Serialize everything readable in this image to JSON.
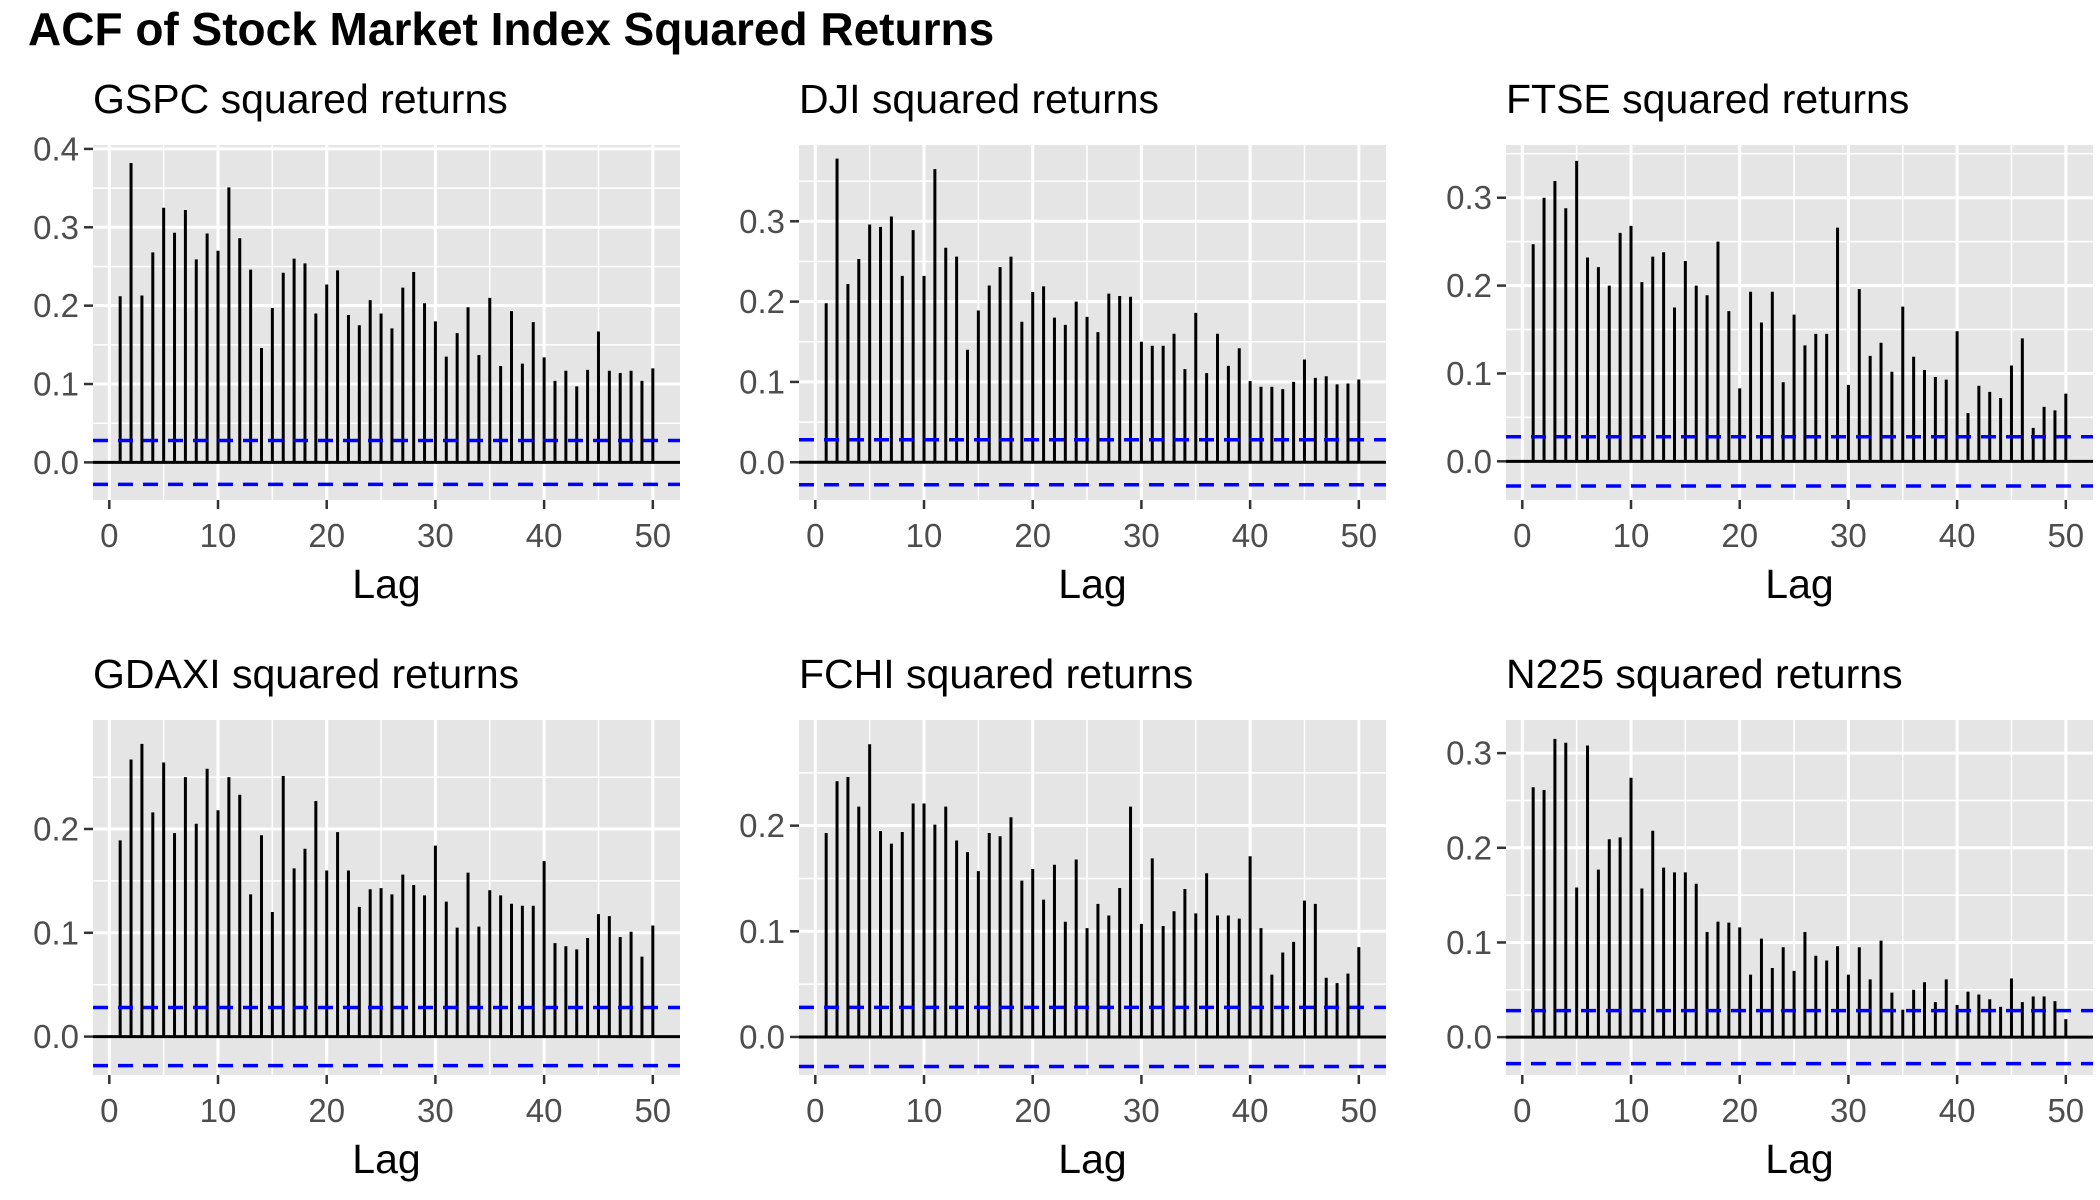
{
  "title": "ACF of Stock Market Index Squared Returns",
  "colors": {
    "panel_background": "#e5e5e5",
    "grid": "#ffffff",
    "bars": "#000000",
    "confidence_band": "#0000ff"
  },
  "chart_data": [
    {
      "type": "bar",
      "title": "GSPC squared returns",
      "xlabel": "Lag",
      "ylabel": "",
      "xlim": [
        -1.5,
        52.5
      ],
      "ylim": [
        -0.048,
        0.405
      ],
      "xticks": [
        0,
        10,
        20,
        30,
        40,
        50
      ],
      "yticks": [
        0.0,
        0.1,
        0.2,
        0.3,
        0.4
      ],
      "ytick_labels": [
        "0.0",
        "0.1",
        "0.2",
        "0.3",
        "0.4"
      ],
      "confidence_bound": 0.028,
      "x": [
        1,
        2,
        3,
        4,
        5,
        6,
        7,
        8,
        9,
        10,
        11,
        12,
        13,
        14,
        15,
        16,
        17,
        18,
        19,
        20,
        21,
        22,
        23,
        24,
        25,
        26,
        27,
        28,
        29,
        30,
        31,
        32,
        33,
        34,
        35,
        36,
        37,
        38,
        39,
        40,
        41,
        42,
        43,
        44,
        45,
        46,
        47,
        48,
        49,
        50
      ],
      "values": [
        0.212,
        0.382,
        0.213,
        0.268,
        0.325,
        0.293,
        0.322,
        0.259,
        0.292,
        0.27,
        0.351,
        0.286,
        0.246,
        0.146,
        0.197,
        0.242,
        0.26,
        0.254,
        0.19,
        0.227,
        0.245,
        0.188,
        0.175,
        0.207,
        0.19,
        0.171,
        0.223,
        0.243,
        0.203,
        0.18,
        0.135,
        0.165,
        0.198,
        0.137,
        0.21,
        0.123,
        0.193,
        0.126,
        0.179,
        0.134,
        0.104,
        0.117,
        0.097,
        0.118,
        0.167,
        0.117,
        0.114,
        0.117,
        0.104,
        0.12
      ]
    },
    {
      "type": "bar",
      "title": "DJI squared returns",
      "xlabel": "Lag",
      "ylabel": "",
      "xlim": [
        -1.5,
        52.5
      ],
      "ylim": [
        -0.047,
        0.395
      ],
      "xticks": [
        0,
        10,
        20,
        30,
        40,
        50
      ],
      "yticks": [
        0.0,
        0.1,
        0.2,
        0.3
      ],
      "ytick_labels": [
        "0.0",
        "0.1",
        "0.2",
        "0.3"
      ],
      "confidence_bound": 0.028,
      "x": [
        1,
        2,
        3,
        4,
        5,
        6,
        7,
        8,
        9,
        10,
        11,
        12,
        13,
        14,
        15,
        16,
        17,
        18,
        19,
        20,
        21,
        22,
        23,
        24,
        25,
        26,
        27,
        28,
        29,
        30,
        31,
        32,
        33,
        34,
        35,
        36,
        37,
        38,
        39,
        40,
        41,
        42,
        43,
        44,
        45,
        46,
        47,
        48,
        49,
        50
      ],
      "values": [
        0.198,
        0.378,
        0.222,
        0.253,
        0.296,
        0.293,
        0.306,
        0.232,
        0.289,
        0.232,
        0.365,
        0.267,
        0.256,
        0.14,
        0.189,
        0.22,
        0.243,
        0.256,
        0.175,
        0.212,
        0.219,
        0.18,
        0.171,
        0.2,
        0.181,
        0.162,
        0.21,
        0.207,
        0.206,
        0.15,
        0.145,
        0.145,
        0.16,
        0.116,
        0.186,
        0.111,
        0.16,
        0.12,
        0.142,
        0.101,
        0.094,
        0.094,
        0.091,
        0.1,
        0.128,
        0.105,
        0.107,
        0.097,
        0.098,
        0.103
      ]
    },
    {
      "type": "bar",
      "title": "FTSE squared returns",
      "xlabel": "Lag",
      "ylabel": "",
      "xlim": [
        -1.5,
        52.5
      ],
      "ylim": [
        -0.044,
        0.36
      ],
      "xticks": [
        0,
        10,
        20,
        30,
        40,
        50
      ],
      "yticks": [
        0.0,
        0.1,
        0.2,
        0.3
      ],
      "ytick_labels": [
        "0.0",
        "0.1",
        "0.2",
        "0.3"
      ],
      "confidence_bound": 0.028,
      "x": [
        1,
        2,
        3,
        4,
        5,
        6,
        7,
        8,
        9,
        10,
        11,
        12,
        13,
        14,
        15,
        16,
        17,
        18,
        19,
        20,
        21,
        22,
        23,
        24,
        25,
        26,
        27,
        28,
        29,
        30,
        31,
        32,
        33,
        34,
        35,
        36,
        37,
        38,
        39,
        40,
        41,
        42,
        43,
        44,
        45,
        46,
        47,
        48,
        49,
        50
      ],
      "values": [
        0.247,
        0.3,
        0.319,
        0.288,
        0.342,
        0.232,
        0.221,
        0.2,
        0.26,
        0.268,
        0.204,
        0.233,
        0.238,
        0.175,
        0.228,
        0.2,
        0.189,
        0.25,
        0.171,
        0.083,
        0.193,
        0.158,
        0.193,
        0.09,
        0.167,
        0.132,
        0.145,
        0.145,
        0.266,
        0.087,
        0.196,
        0.12,
        0.135,
        0.102,
        0.176,
        0.119,
        0.104,
        0.096,
        0.093,
        0.148,
        0.055,
        0.086,
        0.079,
        0.072,
        0.109,
        0.14,
        0.038,
        0.062,
        0.058,
        0.077
      ]
    },
    {
      "type": "bar",
      "title": "GDAXI squared returns",
      "xlabel": "Lag",
      "ylabel": "",
      "xlim": [
        -1.5,
        52.5
      ],
      "ylim": [
        -0.037,
        0.305
      ],
      "xticks": [
        0,
        10,
        20,
        30,
        40,
        50
      ],
      "yticks": [
        0.0,
        0.1,
        0.2
      ],
      "ytick_labels": [
        "0.0",
        "0.1",
        "0.2"
      ],
      "confidence_bound": 0.028,
      "x": [
        1,
        2,
        3,
        4,
        5,
        6,
        7,
        8,
        9,
        10,
        11,
        12,
        13,
        14,
        15,
        16,
        17,
        18,
        19,
        20,
        21,
        22,
        23,
        24,
        25,
        26,
        27,
        28,
        29,
        30,
        31,
        32,
        33,
        34,
        35,
        36,
        37,
        38,
        39,
        40,
        41,
        42,
        43,
        44,
        45,
        46,
        47,
        48,
        49,
        50
      ],
      "values": [
        0.189,
        0.267,
        0.282,
        0.216,
        0.264,
        0.196,
        0.25,
        0.205,
        0.258,
        0.218,
        0.25,
        0.233,
        0.137,
        0.194,
        0.12,
        0.251,
        0.162,
        0.181,
        0.227,
        0.16,
        0.197,
        0.16,
        0.125,
        0.142,
        0.143,
        0.137,
        0.156,
        0.146,
        0.136,
        0.184,
        0.13,
        0.105,
        0.158,
        0.106,
        0.141,
        0.136,
        0.128,
        0.126,
        0.126,
        0.169,
        0.09,
        0.087,
        0.084,
        0.095,
        0.118,
        0.116,
        0.096,
        0.101,
        0.077,
        0.107
      ]
    },
    {
      "type": "bar",
      "title": "FCHI squared returns",
      "xlabel": "Lag",
      "ylabel": "",
      "xlim": [
        -1.5,
        52.5
      ],
      "ylim": [
        -0.036,
        0.3
      ],
      "xticks": [
        0,
        10,
        20,
        30,
        40,
        50
      ],
      "yticks": [
        0.0,
        0.1,
        0.2
      ],
      "ytick_labels": [
        "0.0",
        "0.1",
        "0.2"
      ],
      "confidence_bound": 0.028,
      "x": [
        1,
        2,
        3,
        4,
        5,
        6,
        7,
        8,
        9,
        10,
        11,
        12,
        13,
        14,
        15,
        16,
        17,
        18,
        19,
        20,
        21,
        22,
        23,
        24,
        25,
        26,
        27,
        28,
        29,
        30,
        31,
        32,
        33,
        34,
        35,
        36,
        37,
        38,
        39,
        40,
        41,
        42,
        43,
        44,
        45,
        46,
        47,
        48,
        49,
        50
      ],
      "values": [
        0.193,
        0.242,
        0.246,
        0.218,
        0.277,
        0.195,
        0.183,
        0.194,
        0.221,
        0.221,
        0.201,
        0.218,
        0.186,
        0.175,
        0.157,
        0.193,
        0.19,
        0.208,
        0.148,
        0.159,
        0.13,
        0.163,
        0.109,
        0.168,
        0.103,
        0.126,
        0.115,
        0.141,
        0.218,
        0.107,
        0.169,
        0.105,
        0.119,
        0.14,
        0.117,
        0.155,
        0.115,
        0.115,
        0.112,
        0.171,
        0.103,
        0.059,
        0.08,
        0.09,
        0.129,
        0.126,
        0.056,
        0.051,
        0.06,
        0.085
      ]
    },
    {
      "type": "bar",
      "title": "N225 squared returns",
      "xlabel": "Lag",
      "ylabel": "",
      "xlim": [
        -1.5,
        52.5
      ],
      "ylim": [
        -0.04,
        0.335
      ],
      "xticks": [
        0,
        10,
        20,
        30,
        40,
        50
      ],
      "yticks": [
        0.0,
        0.1,
        0.2,
        0.3
      ],
      "ytick_labels": [
        "0.0",
        "0.1",
        "0.2",
        "0.3"
      ],
      "confidence_bound": 0.028,
      "x": [
        1,
        2,
        3,
        4,
        5,
        6,
        7,
        8,
        9,
        10,
        11,
        12,
        13,
        14,
        15,
        16,
        17,
        18,
        19,
        20,
        21,
        22,
        23,
        24,
        25,
        26,
        27,
        28,
        29,
        30,
        31,
        32,
        33,
        34,
        35,
        36,
        37,
        38,
        39,
        40,
        41,
        42,
        43,
        44,
        45,
        46,
        47,
        48,
        49,
        50
      ],
      "values": [
        0.264,
        0.261,
        0.315,
        0.311,
        0.158,
        0.308,
        0.177,
        0.209,
        0.211,
        0.274,
        0.157,
        0.218,
        0.179,
        0.174,
        0.174,
        0.162,
        0.111,
        0.122,
        0.121,
        0.116,
        0.066,
        0.104,
        0.073,
        0.095,
        0.07,
        0.111,
        0.086,
        0.081,
        0.096,
        0.066,
        0.095,
        0.061,
        0.102,
        0.047,
        0.029,
        0.05,
        0.058,
        0.037,
        0.061,
        0.034,
        0.048,
        0.045,
        0.04,
        0.032,
        0.062,
        0.037,
        0.043,
        0.043,
        0.038,
        0.019
      ]
    }
  ]
}
